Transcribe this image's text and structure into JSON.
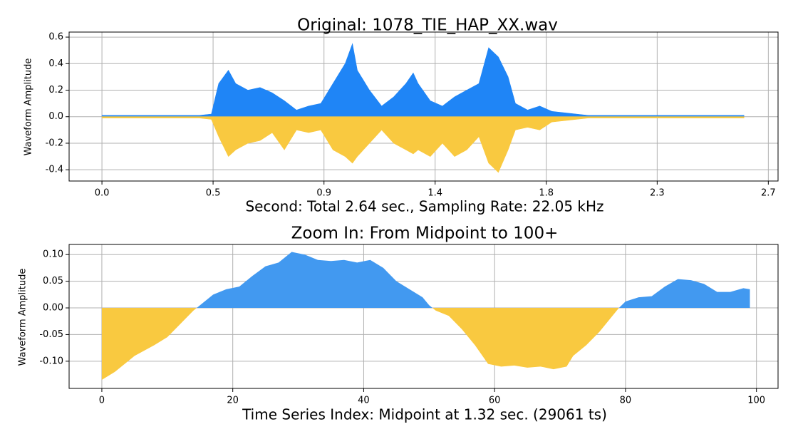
{
  "chart_data": [
    {
      "type": "area",
      "title": "Original: 1078_TIE_HAP_XX.wav",
      "x_label": "Second: Total 2.64 sec., Sampling Rate: 22.05 kHz",
      "y_label": "Waveform Amplitude",
      "x": [
        0,
        0.1,
        0.2,
        0.3,
        0.4,
        0.45,
        0.48,
        0.52,
        0.55,
        0.6,
        0.65,
        0.7,
        0.75,
        0.8,
        0.85,
        0.9,
        0.95,
        1.0,
        1.03,
        1.05,
        1.1,
        1.15,
        1.2,
        1.25,
        1.28,
        1.3,
        1.35,
        1.4,
        1.45,
        1.5,
        1.55,
        1.59,
        1.63,
        1.67,
        1.7,
        1.75,
        1.8,
        1.85,
        1.9,
        1.95,
        2.0,
        2.1,
        2.2,
        2.3,
        2.4,
        2.5,
        2.6,
        2.64
      ],
      "series": [
        {
          "color": "#1f85f6",
          "values": [
            0.01,
            0.01,
            0.01,
            0.01,
            0.01,
            0.02,
            0.25,
            0.35,
            0.25,
            0.2,
            0.22,
            0.18,
            0.12,
            0.05,
            0.08,
            0.1,
            0.25,
            0.4,
            0.55,
            0.35,
            0.2,
            0.08,
            0.15,
            0.25,
            0.33,
            0.25,
            0.12,
            0.08,
            0.15,
            0.2,
            0.25,
            0.52,
            0.45,
            0.3,
            0.1,
            0.05,
            0.08,
            0.04,
            0.03,
            0.02,
            0.01,
            0.01,
            0.01,
            0.01,
            0.01,
            0.01,
            0.01,
            0.01
          ]
        },
        {
          "color": "#f9c940",
          "values": [
            -0.01,
            -0.01,
            -0.01,
            -0.01,
            -0.01,
            -0.02,
            -0.15,
            -0.3,
            -0.25,
            -0.2,
            -0.18,
            -0.12,
            -0.25,
            -0.1,
            -0.12,
            -0.1,
            -0.25,
            -0.3,
            -0.35,
            -0.3,
            -0.2,
            -0.1,
            -0.2,
            -0.25,
            -0.28,
            -0.25,
            -0.3,
            -0.2,
            -0.3,
            -0.25,
            -0.15,
            -0.35,
            -0.42,
            -0.25,
            -0.1,
            -0.08,
            -0.1,
            -0.04,
            -0.03,
            -0.02,
            -0.01,
            -0.01,
            -0.01,
            -0.01,
            -0.01,
            -0.01,
            -0.01,
            -0.01
          ]
        }
      ],
      "xlim": [
        -0.135,
        2.78
      ],
      "ylim": [
        -0.485,
        0.638
      ],
      "xticks": [
        {
          "value": 0,
          "label": "0.0"
        },
        {
          "value": 0.457,
          "label": "0.5"
        },
        {
          "value": 0.913,
          "label": "0.9"
        },
        {
          "value": 1.37,
          "label": "1.4"
        },
        {
          "value": 1.827,
          "label": "1.8"
        },
        {
          "value": 2.283,
          "label": "2.3"
        },
        {
          "value": 2.74,
          "label": "2.7"
        }
      ],
      "yticks": [
        -0.4,
        -0.2,
        {
          "value": 0,
          "label": "0.0"
        },
        0.2,
        0.4,
        0.6
      ],
      "grid": true
    },
    {
      "type": "area",
      "title": "Zoom In: From Midpoint to 100+",
      "x_label": "Time Series Index: Midpoint at 1.32 sec. (29061 ts)",
      "y_label": "Waveform Amplitude",
      "x": [
        0,
        2,
        5,
        8,
        10,
        12,
        14,
        15,
        17,
        19,
        21,
        23,
        25,
        27,
        29,
        31,
        33,
        35,
        37,
        39,
        41,
        43,
        45,
        47,
        49,
        50,
        51,
        53,
        55,
        57,
        59,
        61,
        63,
        65,
        67,
        69,
        71,
        72,
        74,
        76,
        78,
        79,
        80,
        82,
        84,
        86,
        88,
        90,
        92,
        94,
        96,
        98,
        99
      ],
      "values": [
        -0.135,
        -0.12,
        -0.09,
        -0.07,
        -0.055,
        -0.03,
        -0.005,
        0.005,
        0.025,
        0.035,
        0.04,
        0.06,
        0.078,
        0.085,
        0.105,
        0.1,
        0.09,
        0.088,
        0.09,
        0.085,
        0.09,
        0.075,
        0.05,
        0.035,
        0.02,
        0.005,
        -0.005,
        -0.015,
        -0.04,
        -0.07,
        -0.105,
        -0.11,
        -0.108,
        -0.112,
        -0.11,
        -0.115,
        -0.11,
        -0.09,
        -0.07,
        -0.045,
        -0.015,
        0,
        0.012,
        0.02,
        0.022,
        0.04,
        0.054,
        0.052,
        0.045,
        0.03,
        0.03,
        0.037,
        0.035
      ],
      "color_above": "#4299f0",
      "color_below": "#f9c940",
      "xlim": [
        -5,
        103.3
      ],
      "ylim": [
        -0.151,
        0.119
      ],
      "xticks": [
        0,
        20,
        40,
        60,
        80,
        100
      ],
      "yticks": [
        {
          "value": -0.1,
          "label": "-0.10"
        },
        {
          "value": -0.05,
          "label": "-0.05"
        },
        {
          "value": 0,
          "label": "0.00"
        },
        {
          "value": 0.05,
          "label": "0.05"
        },
        {
          "value": 0.1,
          "label": "0.10"
        }
      ],
      "grid": true
    }
  ]
}
